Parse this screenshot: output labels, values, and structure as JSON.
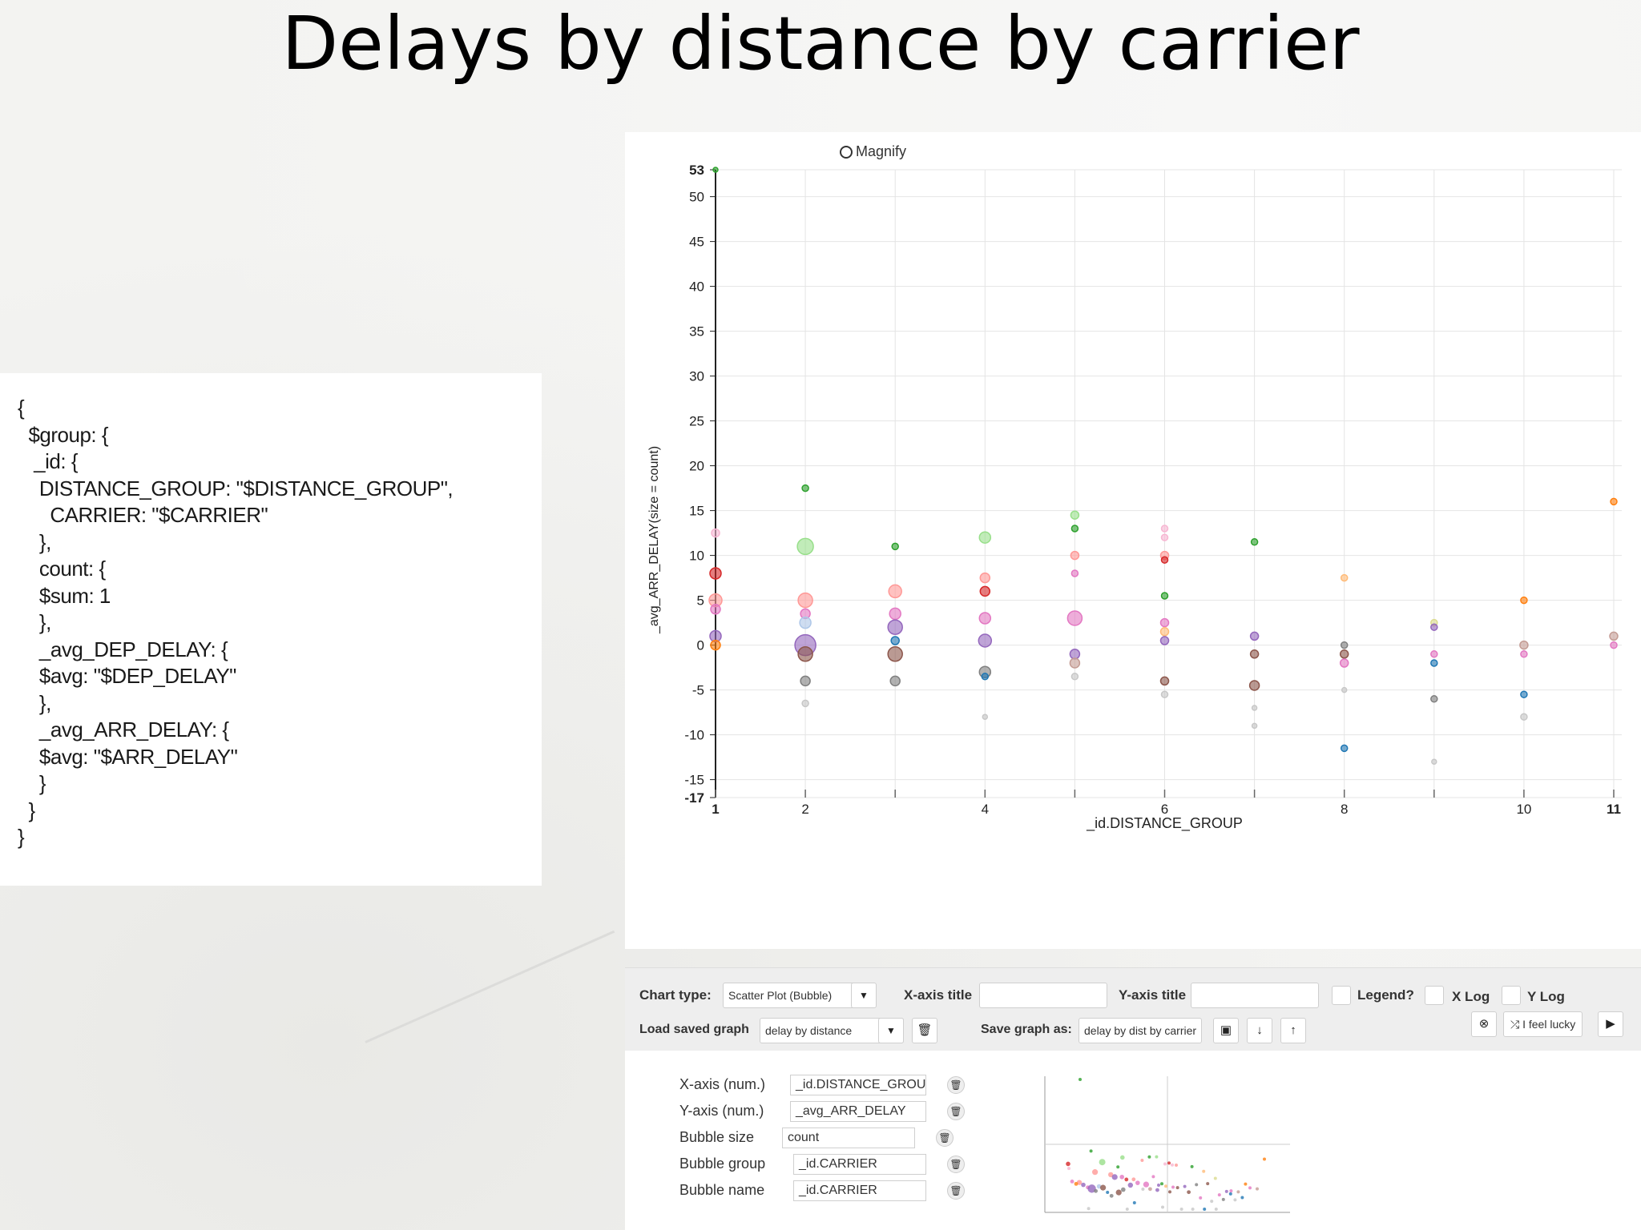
{
  "slide": {
    "title": "Delays by distance by carrier"
  },
  "code": {
    "lines": [
      "{",
      "  $group: {",
      "   _id: {",
      "    DISTANCE_GROUP: \"$DISTANCE_GROUP\",",
      "      CARRIER: \"$CARRIER\"",
      "    },",
      "    count: {",
      "    $sum: 1",
      "    },",
      "    _avg_DEP_DELAY: {",
      "    $avg: \"$DEP_DELAY\"",
      "    },",
      "    _avg_ARR_DELAY: {",
      "    $avg: \"$ARR_DELAY\"",
      "    }",
      "  }",
      "}"
    ]
  },
  "magnify_label": "Magnify",
  "chart_data": {
    "type": "scatter",
    "subtype": "bubble",
    "xlabel": "_id.DISTANCE_GROUP",
    "ylabel": "_avg_ARR_DELAY(size = count)",
    "xlim": [
      1,
      11
    ],
    "ylim": [
      -17,
      53
    ],
    "x_ticks": [
      1,
      2,
      3,
      4,
      5,
      6,
      7,
      8,
      9,
      10,
      11
    ],
    "x_tick_labels": [
      "1",
      "2",
      "",
      "4",
      "",
      "6",
      "",
      "8",
      "",
      "10",
      "11"
    ],
    "y_ticks": [
      53,
      50,
      45,
      40,
      35,
      30,
      25,
      20,
      15,
      10,
      5,
      0,
      -5,
      -10,
      -15,
      -17
    ],
    "grid": true,
    "legend": "none",
    "points": [
      {
        "x": 1,
        "y": 8,
        "r": 7,
        "color": "#d62728"
      },
      {
        "x": 1,
        "y": 5,
        "r": 8,
        "color": "#ff9896"
      },
      {
        "x": 1,
        "y": 4,
        "r": 6,
        "color": "#e377c2"
      },
      {
        "x": 1,
        "y": 1,
        "r": 7,
        "color": "#9467bd"
      },
      {
        "x": 1,
        "y": 0,
        "r": 6,
        "color": "#ff7f0e"
      },
      {
        "x": 1,
        "y": 12.5,
        "r": 5,
        "color": "#f7b6d2"
      },
      {
        "x": 1,
        "y": 53,
        "r": 3,
        "color": "#2ca02c"
      },
      {
        "x": 2,
        "y": 17.5,
        "r": 4,
        "color": "#2ca02c"
      },
      {
        "x": 2,
        "y": 11,
        "r": 10,
        "color": "#98df8a"
      },
      {
        "x": 2,
        "y": 5,
        "r": 9,
        "color": "#ff9896"
      },
      {
        "x": 2,
        "y": 3.5,
        "r": 6,
        "color": "#e377c2"
      },
      {
        "x": 2,
        "y": 2.5,
        "r": 7,
        "color": "#aec7e8"
      },
      {
        "x": 2,
        "y": 0,
        "r": 13,
        "color": "#9467bd"
      },
      {
        "x": 2,
        "y": -1,
        "r": 9,
        "color": "#8c564b"
      },
      {
        "x": 2,
        "y": -4,
        "r": 6,
        "color": "#7f7f7f"
      },
      {
        "x": 2,
        "y": -6.5,
        "r": 4,
        "color": "#c7c7c7"
      },
      {
        "x": 3,
        "y": 11,
        "r": 4,
        "color": "#2ca02c"
      },
      {
        "x": 3,
        "y": 6,
        "r": 8,
        "color": "#ff9896"
      },
      {
        "x": 3,
        "y": 3.5,
        "r": 7,
        "color": "#e377c2"
      },
      {
        "x": 3,
        "y": 2,
        "r": 9,
        "color": "#9467bd"
      },
      {
        "x": 3,
        "y": 0.5,
        "r": 5,
        "color": "#1f77b4"
      },
      {
        "x": 3,
        "y": -1,
        "r": 9,
        "color": "#8c564b"
      },
      {
        "x": 3,
        "y": -4,
        "r": 6,
        "color": "#7f7f7f"
      },
      {
        "x": 4,
        "y": 12,
        "r": 7,
        "color": "#98df8a"
      },
      {
        "x": 4,
        "y": 7.5,
        "r": 6,
        "color": "#ff9896"
      },
      {
        "x": 4,
        "y": 6,
        "r": 6,
        "color": "#d62728"
      },
      {
        "x": 4,
        "y": 3,
        "r": 7,
        "color": "#e377c2"
      },
      {
        "x": 4,
        "y": 0.5,
        "r": 8,
        "color": "#9467bd"
      },
      {
        "x": 4,
        "y": -3,
        "r": 7,
        "color": "#7f7f7f"
      },
      {
        "x": 4,
        "y": -3.5,
        "r": 4,
        "color": "#1f77b4"
      },
      {
        "x": 4,
        "y": -8,
        "r": 3,
        "color": "#c7c7c7"
      },
      {
        "x": 5,
        "y": 14.5,
        "r": 5,
        "color": "#98df8a"
      },
      {
        "x": 5,
        "y": 13,
        "r": 4,
        "color": "#2ca02c"
      },
      {
        "x": 5,
        "y": 10,
        "r": 5,
        "color": "#ff9896"
      },
      {
        "x": 5,
        "y": 8,
        "r": 4,
        "color": "#e377c2"
      },
      {
        "x": 5,
        "y": 3,
        "r": 9,
        "color": "#e377c2"
      },
      {
        "x": 5,
        "y": -1,
        "r": 6,
        "color": "#9467bd"
      },
      {
        "x": 5,
        "y": -2,
        "r": 6,
        "color": "#c49c94"
      },
      {
        "x": 5,
        "y": -3.5,
        "r": 4,
        "color": "#c7c7c7"
      },
      {
        "x": 6,
        "y": 13,
        "r": 4,
        "color": "#f7b6d2"
      },
      {
        "x": 6,
        "y": 12,
        "r": 4,
        "color": "#f7b6d2"
      },
      {
        "x": 6,
        "y": 10,
        "r": 5,
        "color": "#ff9896"
      },
      {
        "x": 6,
        "y": 9.5,
        "r": 4,
        "color": "#d62728"
      },
      {
        "x": 6,
        "y": 5.5,
        "r": 4,
        "color": "#2ca02c"
      },
      {
        "x": 6,
        "y": 2.5,
        "r": 5,
        "color": "#e377c2"
      },
      {
        "x": 6,
        "y": 1.5,
        "r": 5,
        "color": "#ffbb78"
      },
      {
        "x": 6,
        "y": 0.5,
        "r": 5,
        "color": "#9467bd"
      },
      {
        "x": 6,
        "y": -4,
        "r": 5,
        "color": "#8c564b"
      },
      {
        "x": 6,
        "y": -5.5,
        "r": 4,
        "color": "#c7c7c7"
      },
      {
        "x": 7,
        "y": 11.5,
        "r": 4,
        "color": "#2ca02c"
      },
      {
        "x": 7,
        "y": 1,
        "r": 5,
        "color": "#9467bd"
      },
      {
        "x": 7,
        "y": -1,
        "r": 5,
        "color": "#8c564b"
      },
      {
        "x": 7,
        "y": -4.5,
        "r": 6,
        "color": "#8c564b"
      },
      {
        "x": 7,
        "y": -7,
        "r": 3,
        "color": "#c7c7c7"
      },
      {
        "x": 7,
        "y": -9,
        "r": 3,
        "color": "#c7c7c7"
      },
      {
        "x": 8,
        "y": 7.5,
        "r": 4,
        "color": "#ffbb78"
      },
      {
        "x": 8,
        "y": 0,
        "r": 4,
        "color": "#7f7f7f"
      },
      {
        "x": 8,
        "y": -1,
        "r": 5,
        "color": "#8c564b"
      },
      {
        "x": 8,
        "y": -2,
        "r": 5,
        "color": "#e377c2"
      },
      {
        "x": 8,
        "y": -5,
        "r": 3,
        "color": "#c7c7c7"
      },
      {
        "x": 8,
        "y": -11.5,
        "r": 4,
        "color": "#1f77b4"
      },
      {
        "x": 9,
        "y": 2.5,
        "r": 4,
        "color": "#dbdb8d"
      },
      {
        "x": 9,
        "y": 2,
        "r": 4,
        "color": "#9467bd"
      },
      {
        "x": 9,
        "y": -1,
        "r": 4,
        "color": "#e377c2"
      },
      {
        "x": 9,
        "y": -2,
        "r": 4,
        "color": "#1f77b4"
      },
      {
        "x": 9,
        "y": -6,
        "r": 4,
        "color": "#7f7f7f"
      },
      {
        "x": 9,
        "y": -13,
        "r": 3,
        "color": "#c7c7c7"
      },
      {
        "x": 10,
        "y": 5,
        "r": 4,
        "color": "#ff7f0e"
      },
      {
        "x": 10,
        "y": 0,
        "r": 5,
        "color": "#c49c94"
      },
      {
        "x": 10,
        "y": -1,
        "r": 4,
        "color": "#e377c2"
      },
      {
        "x": 10,
        "y": -5.5,
        "r": 4,
        "color": "#1f77b4"
      },
      {
        "x": 10,
        "y": -8,
        "r": 4,
        "color": "#c7c7c7"
      },
      {
        "x": 11,
        "y": 16,
        "r": 4,
        "color": "#ff7f0e"
      },
      {
        "x": 11,
        "y": 1,
        "r": 5,
        "color": "#c49c94"
      },
      {
        "x": 11,
        "y": 0,
        "r": 4,
        "color": "#e377c2"
      }
    ]
  },
  "controls": {
    "chart_type_label": "Chart type:",
    "chart_type_value": "Scatter Plot (Bubble)",
    "xaxis_title_label": "X-axis title",
    "xaxis_title_value": "",
    "yaxis_title_label": "Y-axis title",
    "yaxis_title_value": "",
    "legend_label": "Legend?",
    "xlog_label": "X Log",
    "ylog_label": "Y Log",
    "load_saved_label": "Load saved graph",
    "load_saved_value": "delay by distance",
    "save_as_label": "Save graph as:",
    "save_as_value": "delay by dist by carrier",
    "lucky_label": "⤮ I feel lucky"
  },
  "mapping": {
    "rows": [
      {
        "label": "X-axis (num.)",
        "value": "_id.DISTANCE_GROUI"
      },
      {
        "label": "Y-axis (num.)",
        "value": "_avg_ARR_DELAY"
      },
      {
        "label": "Bubble size",
        "value": "count"
      },
      {
        "label": "Bubble group",
        "value": "_id.CARRIER"
      },
      {
        "label": "Bubble name",
        "value": "_id.CARRIER"
      }
    ]
  }
}
